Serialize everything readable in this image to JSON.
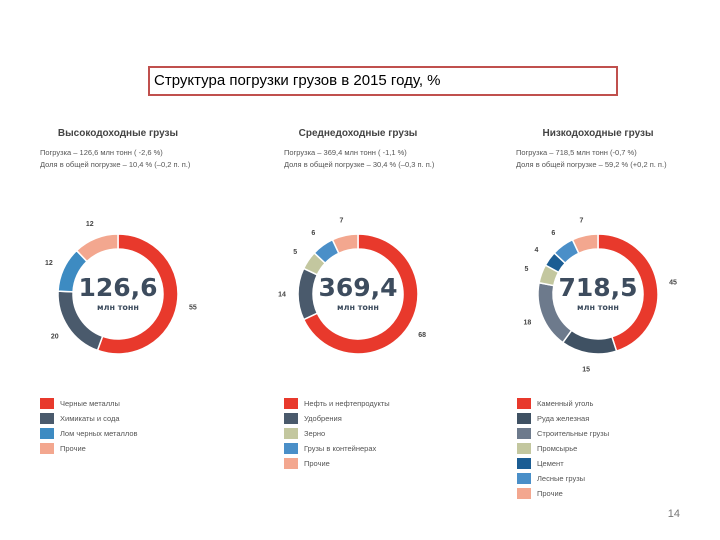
{
  "slide": {
    "title": "Структура погрузки грузов в 2015 году, %",
    "page_number": "14"
  },
  "chart_data": [
    {
      "type": "pie",
      "title": "Высокодоходные грузы",
      "subtitle_lines": [
        "Погрузка – 126,6 млн тонн ( -2,6 %)",
        "Доля в общей погрузке – 10,4 % (–0,2 п. п.)"
      ],
      "center_value": "126,6",
      "center_unit": "млн тонн",
      "series": [
        {
          "name": "Черные металлы",
          "value": 55,
          "label": "55",
          "color": "#e8392c"
        },
        {
          "name": "Химикаты и сода",
          "value": 20,
          "label": "20",
          "color": "#4a5a6c"
        },
        {
          "name": "Лом черных металлов",
          "value": 12,
          "label": "12",
          "color": "#3d8bc2"
        },
        {
          "name": "Прочие",
          "value": 12,
          "label": "12",
          "color": "#f3a78f"
        }
      ]
    },
    {
      "type": "pie",
      "title": "Среднедоходные грузы",
      "subtitle_lines": [
        "Погрузка – 369,4 млн тонн ( -1,1 %)",
        "Доля в общей погрузке – 30,4 % (–0,3 п. п.)"
      ],
      "center_value": "369,4",
      "center_unit": "млн тонн",
      "series": [
        {
          "name": "Нефть и нефтепродукты",
          "value": 68,
          "label": "68",
          "color": "#e8392c"
        },
        {
          "name": "Удобрения",
          "value": 14,
          "label": "14",
          "color": "#4a5a6c"
        },
        {
          "name": "Зерно",
          "value": 5,
          "label": "5",
          "color": "#c3c79f"
        },
        {
          "name": "Грузы в контейнерах",
          "value": 6,
          "label": "6",
          "color": "#4a8fc8"
        },
        {
          "name": "Прочие",
          "value": 7,
          "label": "7",
          "color": "#f3a78f"
        }
      ]
    },
    {
      "type": "pie",
      "title": "Низкодоходные грузы",
      "subtitle_lines": [
        "Погрузка – 718,5 млн тонн (-0,7 %)",
        "Доля в общей погрузке – 59,2 % (+0,2 п. п.)"
      ],
      "center_value": "718,5",
      "center_unit": "млн тонн",
      "series": [
        {
          "name": "Каменный уголь",
          "value": 45,
          "label": "45",
          "color": "#e8392c"
        },
        {
          "name": "Руда железная",
          "value": 15,
          "label": "15",
          "color": "#3f5163"
        },
        {
          "name": "Строительные грузы",
          "value": 18,
          "label": "18",
          "color": "#6d7a8c"
        },
        {
          "name": "Промсырье",
          "value": 5,
          "label": "5",
          "color": "#c3c79f"
        },
        {
          "name": "Цемент",
          "value": 4,
          "label": "4",
          "color": "#1b5d93"
        },
        {
          "name": "Лесные грузы",
          "value": 6,
          "label": "6",
          "color": "#4a8fc8"
        },
        {
          "name": "Прочие",
          "value": 7,
          "label": "7",
          "color": "#f3a78f"
        }
      ]
    }
  ]
}
